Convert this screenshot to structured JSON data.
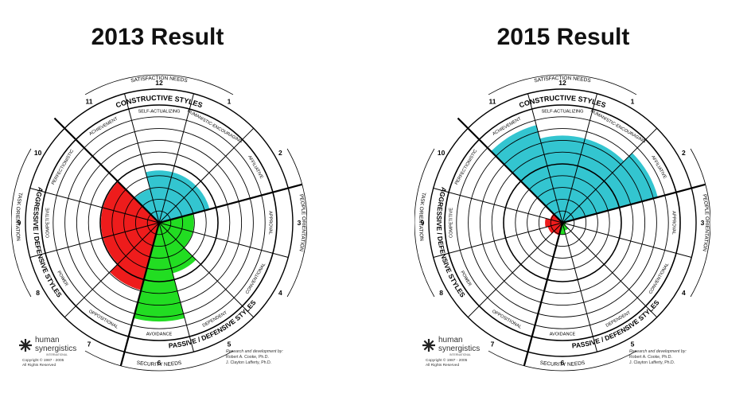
{
  "headings": [
    "2013 Result",
    "2015 Result"
  ],
  "labels": {
    "satisfaction": "SATISFACTION NEEDS",
    "security": "SECURITY NEEDS",
    "task": "TASK ORIENTATION",
    "people": "PEOPLE ORIENTATION",
    "constructive": "CONSTRUCTIVE STYLES",
    "aggressive": "AGGRESSIVE / DEFENSIVE STYLES",
    "passive": "PASSIVE / DEFENSIVE STYLES",
    "logo_line1": "human",
    "logo_line2": "synergistics",
    "logo_line3": "INTERNATIONAL",
    "copyright1": "Copyright © 1987 - 2005",
    "copyright2": "All Rights Reserved",
    "research1": "Research and development by:",
    "research2": "Robert A. Cooke, Ph.D.",
    "research3": "J. Clayton Lafferty, Ph.D."
  },
  "styles": [
    {
      "num": "1",
      "name": "HUMANISTIC-ENCOURAGING"
    },
    {
      "num": "2",
      "name": "AFFILIATIVE"
    },
    {
      "num": "3",
      "name": "APPROVAL"
    },
    {
      "num": "4",
      "name": "CONVENTIONAL"
    },
    {
      "num": "5",
      "name": "DEPENDENT"
    },
    {
      "num": "6",
      "name": "AVOIDANCE"
    },
    {
      "num": "7",
      "name": "OPPOSITIONAL"
    },
    {
      "num": "8",
      "name": "POWER"
    },
    {
      "num": "9",
      "name": "COMPETITIVE"
    },
    {
      "num": "10",
      "name": "PERFECTIONISTIC"
    },
    {
      "num": "11",
      "name": "ACHIEVEMENT"
    },
    {
      "num": "12",
      "name": "SELF-ACTUALIZING"
    }
  ],
  "colors": {
    "constructive": "#33c5d0",
    "passive": "#22dd22",
    "aggressive": "#ee1c1c"
  },
  "chart_data": [
    {
      "type": "radial",
      "title": "2013 Result",
      "rmax": 10,
      "values": [
        4.5,
        4.5,
        3,
        3,
        4.5,
        8.5,
        6,
        5,
        5,
        5,
        3,
        4.5
      ]
    },
    {
      "type": "radial",
      "title": "2015 Result",
      "rmax": 10,
      "values": [
        7.5,
        8.5,
        0.3,
        0.3,
        0.7,
        1,
        1.1,
        1.3,
        1.5,
        1.1,
        8.7,
        7.5
      ]
    }
  ]
}
